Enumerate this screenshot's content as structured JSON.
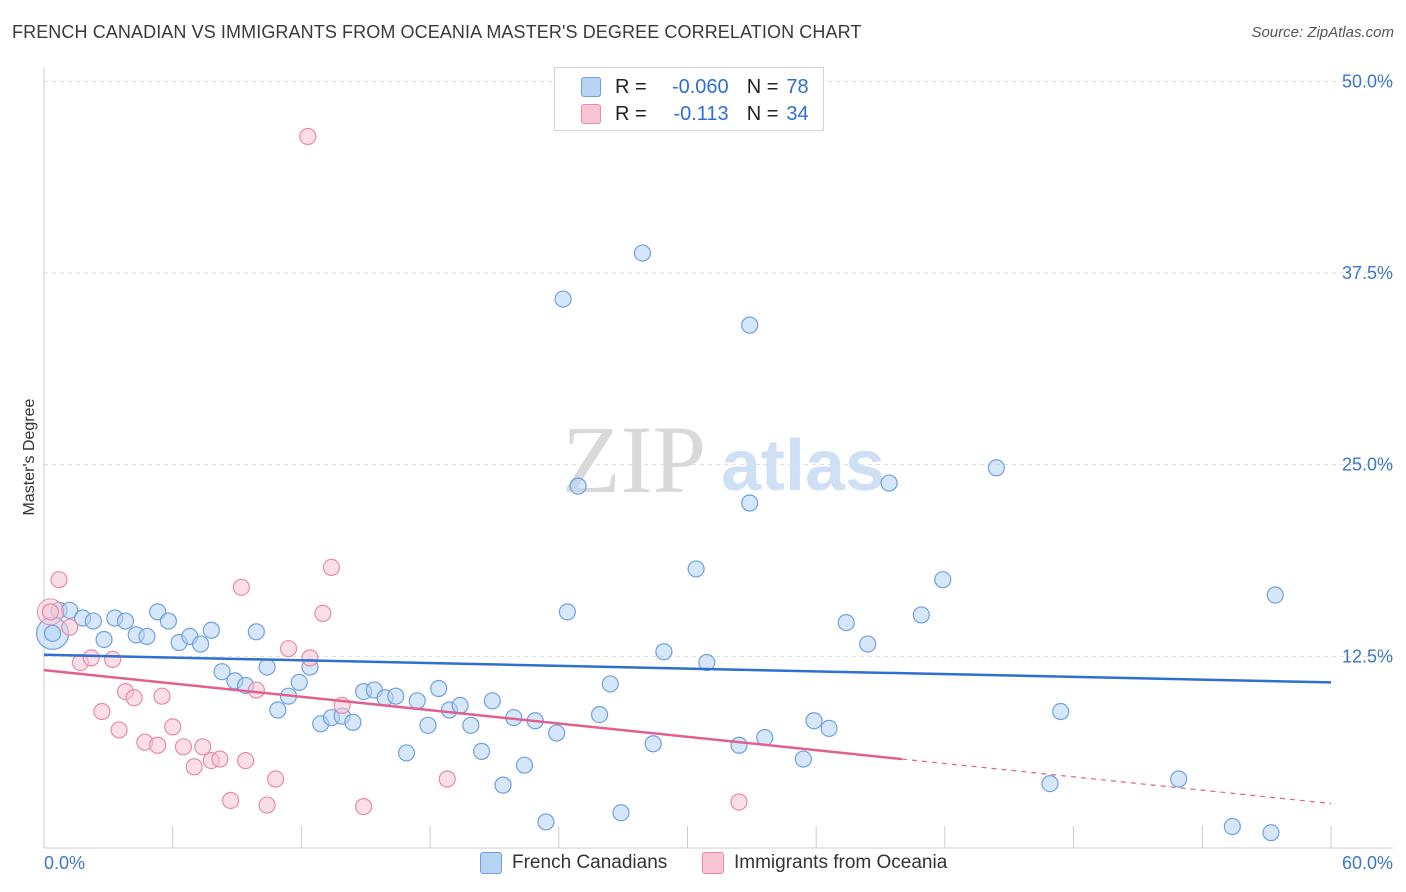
{
  "title": "FRENCH CANADIAN VS IMMIGRANTS FROM OCEANIA MASTER'S DEGREE CORRELATION CHART",
  "source": "Source: ZipAtlas.com",
  "watermark": {
    "zip": "ZIP",
    "atlas": "atlas"
  },
  "legend": {
    "r_label": "R =",
    "n_label": "N =",
    "series1": {
      "r": "-0.060",
      "n": "78"
    },
    "series2": {
      "r": "-0.113",
      "n": "34"
    }
  },
  "bottom_legend": {
    "series1": "French Canadians",
    "series2": "Immigrants from Oceania"
  },
  "colors": {
    "blue_fill": "#b7d3f5",
    "blue_stroke": "#6fa1df",
    "blue_line": "#2f6fd1",
    "pink_fill": "#f8c5d4",
    "pink_stroke": "#e88aa8",
    "pink_line": "#e0608f",
    "axis_text": "#3f76c9",
    "grid": "#dddddd"
  },
  "chart_data": {
    "type": "scatter",
    "title": "FRENCH CANADIAN VS IMMIGRANTS FROM OCEANIA MASTER'S DEGREE CORRELATION CHART",
    "xlabel": "",
    "ylabel": "Master's Degree",
    "xlim": [
      0,
      60
    ],
    "ylim": [
      0,
      52
    ],
    "x_tick_labels": [
      "0.0%",
      "60.0%"
    ],
    "y_ticks": [
      {
        "value": 12.5,
        "label": "12.5%"
      },
      {
        "value": 25.0,
        "label": "25.0%"
      },
      {
        "value": 37.5,
        "label": "37.5%"
      },
      {
        "value": 50.0,
        "label": "50.0%"
      }
    ],
    "grid": "horizontal dashed",
    "series": [
      {
        "name": "French Canadians",
        "r": -0.06,
        "n": 78,
        "trend": {
          "x": [
            0,
            60
          ],
          "y": [
            12.6,
            10.8
          ],
          "dashed_from": null
        },
        "points": [
          [
            0.4,
            14.0
          ],
          [
            0.7,
            15.5
          ],
          [
            1.2,
            15.5
          ],
          [
            1.8,
            15.0
          ],
          [
            2.3,
            14.8
          ],
          [
            2.8,
            13.6
          ],
          [
            3.3,
            15.0
          ],
          [
            3.8,
            14.8
          ],
          [
            4.3,
            13.9
          ],
          [
            4.8,
            13.8
          ],
          [
            5.3,
            15.4
          ],
          [
            5.8,
            14.8
          ],
          [
            6.3,
            13.4
          ],
          [
            6.8,
            13.8
          ],
          [
            7.3,
            13.3
          ],
          [
            7.8,
            14.2
          ],
          [
            8.3,
            11.5
          ],
          [
            8.9,
            10.9
          ],
          [
            9.4,
            10.6
          ],
          [
            9.9,
            14.1
          ],
          [
            10.4,
            11.8
          ],
          [
            10.9,
            9.0
          ],
          [
            11.4,
            9.9
          ],
          [
            11.9,
            10.8
          ],
          [
            12.4,
            11.8
          ],
          [
            12.9,
            8.1
          ],
          [
            13.4,
            8.5
          ],
          [
            13.9,
            8.6
          ],
          [
            14.4,
            8.2
          ],
          [
            14.9,
            10.2
          ],
          [
            15.4,
            10.3
          ],
          [
            15.9,
            9.8
          ],
          [
            16.4,
            9.9
          ],
          [
            16.9,
            6.2
          ],
          [
            17.4,
            9.6
          ],
          [
            17.9,
            8.0
          ],
          [
            18.4,
            10.4
          ],
          [
            18.9,
            9.0
          ],
          [
            19.4,
            9.3
          ],
          [
            19.9,
            8.0
          ],
          [
            20.4,
            6.3
          ],
          [
            20.9,
            9.6
          ],
          [
            21.4,
            4.1
          ],
          [
            21.9,
            8.5
          ],
          [
            22.4,
            5.4
          ],
          [
            22.9,
            8.3
          ],
          [
            23.4,
            1.7
          ],
          [
            23.9,
            7.5
          ],
          [
            24.4,
            15.4
          ],
          [
            24.9,
            23.6
          ],
          [
            24.2,
            35.8
          ],
          [
            25.9,
            8.7
          ],
          [
            26.4,
            10.7
          ],
          [
            26.9,
            2.3
          ],
          [
            27.9,
            38.8
          ],
          [
            28.4,
            6.8
          ],
          [
            28.9,
            12.8
          ],
          [
            30.4,
            18.2
          ],
          [
            30.9,
            12.1
          ],
          [
            32.9,
            22.5
          ],
          [
            32.4,
            6.7
          ],
          [
            32.9,
            34.1
          ],
          [
            33.6,
            7.2
          ],
          [
            35.4,
            5.8
          ],
          [
            35.9,
            8.3
          ],
          [
            36.6,
            7.8
          ],
          [
            37.4,
            14.7
          ],
          [
            38.4,
            13.3
          ],
          [
            39.4,
            23.8
          ],
          [
            40.9,
            15.2
          ],
          [
            41.9,
            17.5
          ],
          [
            44.4,
            24.8
          ],
          [
            47.4,
            8.9
          ],
          [
            46.9,
            4.2
          ],
          [
            52.9,
            4.5
          ],
          [
            55.4,
            1.4
          ],
          [
            57.4,
            16.5
          ],
          [
            57.2,
            1.0
          ]
        ]
      },
      {
        "name": "Immigrants from Oceania",
        "r": -0.113,
        "n": 34,
        "trend": {
          "x": [
            0,
            60
          ],
          "y": [
            11.6,
            2.9
          ],
          "dashed_from": 40.0
        },
        "points": [
          [
            0.3,
            15.4
          ],
          [
            0.7,
            17.5
          ],
          [
            1.2,
            14.4
          ],
          [
            1.7,
            12.1
          ],
          [
            2.2,
            12.4
          ],
          [
            2.7,
            8.9
          ],
          [
            3.2,
            12.3
          ],
          [
            3.5,
            7.7
          ],
          [
            3.8,
            10.2
          ],
          [
            4.2,
            9.8
          ],
          [
            4.7,
            6.9
          ],
          [
            5.3,
            6.7
          ],
          [
            5.5,
            9.9
          ],
          [
            6.0,
            7.9
          ],
          [
            6.5,
            6.6
          ],
          [
            7.0,
            5.3
          ],
          [
            7.4,
            6.6
          ],
          [
            7.8,
            5.7
          ],
          [
            8.2,
            5.8
          ],
          [
            8.7,
            3.1
          ],
          [
            9.2,
            17.0
          ],
          [
            9.4,
            5.7
          ],
          [
            9.9,
            10.3
          ],
          [
            10.4,
            2.8
          ],
          [
            10.8,
            4.5
          ],
          [
            11.4,
            13.0
          ],
          [
            12.4,
            12.4
          ],
          [
            12.3,
            46.4
          ],
          [
            13.0,
            15.3
          ],
          [
            13.4,
            18.3
          ],
          [
            13.9,
            9.3
          ],
          [
            14.9,
            2.7
          ],
          [
            18.8,
            4.5
          ],
          [
            32.4,
            3.0
          ]
        ]
      }
    ]
  }
}
